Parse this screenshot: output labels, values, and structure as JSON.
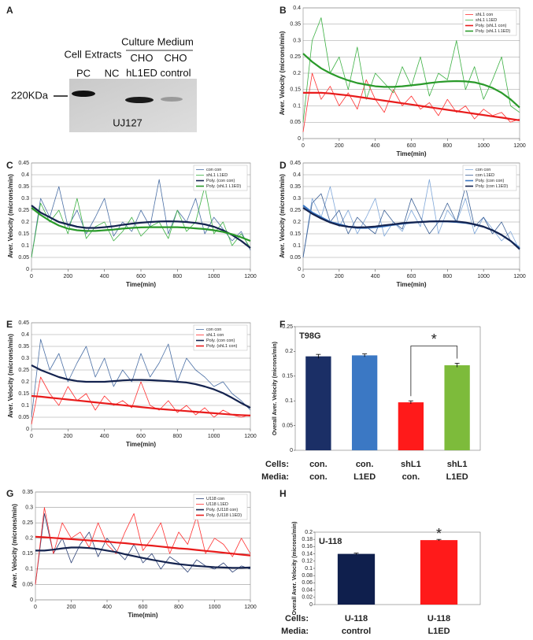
{
  "blot": {
    "panel": "A",
    "groups": [
      "Cell Extracts",
      "Culture Medium"
    ],
    "lanes": [
      "PC",
      "NC",
      "CHO\nhL1ED",
      "CHO\ncontrol"
    ],
    "marker": "220KDa",
    "antibody": "UJ127"
  },
  "chart_data": [
    {
      "panel": "B",
      "type": "line",
      "xlabel": "Time(min)",
      "ylabel": "Aver. Velocity (microns/min)",
      "grid": true,
      "legend": "upper right",
      "x": [
        0,
        50,
        100,
        150,
        200,
        250,
        300,
        350,
        400,
        450,
        500,
        550,
        600,
        650,
        700,
        750,
        800,
        850,
        900,
        950,
        1000,
        1050,
        1100,
        1150,
        1200
      ],
      "xlim": [
        0,
        1200
      ],
      "xticks": [
        0,
        200,
        400,
        600,
        800,
        1000,
        1200
      ],
      "ylim": [
        0,
        0.4
      ],
      "yticks": [
        0,
        0.05,
        0.1,
        0.15,
        0.2,
        0.25,
        0.3,
        0.35,
        0.4
      ],
      "series": [
        {
          "name": "shL1 con",
          "color": "#ff3030",
          "width": 0.8,
          "values": [
            0.02,
            0.2,
            0.12,
            0.16,
            0.1,
            0.14,
            0.09,
            0.18,
            0.12,
            0.08,
            0.15,
            0.1,
            0.13,
            0.09,
            0.11,
            0.07,
            0.12,
            0.08,
            0.1,
            0.06,
            0.09,
            0.07,
            0.08,
            0.05,
            0.06
          ]
        },
        {
          "name": "shL1 L1ED",
          "color": "#3cb043",
          "width": 0.8,
          "values": [
            0.05,
            0.3,
            0.37,
            0.2,
            0.25,
            0.15,
            0.28,
            0.12,
            0.2,
            0.17,
            0.14,
            0.22,
            0.16,
            0.25,
            0.13,
            0.2,
            0.18,
            0.3,
            0.15,
            0.22,
            0.12,
            0.18,
            0.25,
            0.1,
            0.08
          ]
        },
        {
          "name": "Poly. (shL1 con)",
          "color": "#e81c1c",
          "width": 2.2,
          "values": [
            0.14,
            0.14,
            0.14,
            0.138,
            0.135,
            0.132,
            0.128,
            0.124,
            0.12,
            0.116,
            0.112,
            0.108,
            0.104,
            0.1,
            0.096,
            0.092,
            0.088,
            0.084,
            0.08,
            0.076,
            0.072,
            0.068,
            0.064,
            0.06,
            0.056
          ]
        },
        {
          "name": "Poly. (shL1 L1ED)",
          "color": "#2a9a2a",
          "width": 2.2,
          "values": [
            0.26,
            0.235,
            0.215,
            0.2,
            0.188,
            0.178,
            0.17,
            0.165,
            0.16,
            0.158,
            0.158,
            0.16,
            0.163,
            0.166,
            0.17,
            0.173,
            0.175,
            0.176,
            0.175,
            0.172,
            0.165,
            0.155,
            0.14,
            0.12,
            0.095
          ]
        }
      ]
    },
    {
      "panel": "C",
      "type": "line",
      "xlabel": "Time(min)",
      "ylabel": "Aver. Velocity (microns/min)",
      "grid": true,
      "legend": "upper right",
      "x": [
        0,
        50,
        100,
        150,
        200,
        250,
        300,
        350,
        400,
        450,
        500,
        550,
        600,
        650,
        700,
        750,
        800,
        850,
        900,
        950,
        1000,
        1050,
        1100,
        1150,
        1200
      ],
      "xlim": [
        0,
        1200
      ],
      "xticks": [
        0,
        200,
        400,
        600,
        800,
        1000,
        1200
      ],
      "ylim": [
        0,
        0.45
      ],
      "yticks": [
        0,
        0.05,
        0.1,
        0.15,
        0.2,
        0.25,
        0.3,
        0.35,
        0.4,
        0.45
      ],
      "series": [
        {
          "name": "con con",
          "color": "#4a6fa5",
          "width": 0.8,
          "values": [
            0.05,
            0.3,
            0.22,
            0.35,
            0.18,
            0.25,
            0.15,
            0.22,
            0.3,
            0.14,
            0.2,
            0.16,
            0.25,
            0.18,
            0.38,
            0.15,
            0.25,
            0.2,
            0.3,
            0.15,
            0.22,
            0.17,
            0.12,
            0.16,
            0.08
          ]
        },
        {
          "name": "shL1 L1ED",
          "color": "#3cb043",
          "width": 0.8,
          "values": [
            0.05,
            0.28,
            0.2,
            0.25,
            0.15,
            0.3,
            0.13,
            0.18,
            0.2,
            0.12,
            0.16,
            0.22,
            0.14,
            0.18,
            0.2,
            0.13,
            0.25,
            0.16,
            0.2,
            0.35,
            0.15,
            0.2,
            0.1,
            0.15,
            0.09
          ]
        },
        {
          "name": "Poly. (con con)",
          "color": "#14234f",
          "width": 2.2,
          "values": [
            0.27,
            0.24,
            0.22,
            0.2,
            0.19,
            0.18,
            0.175,
            0.175,
            0.178,
            0.182,
            0.188,
            0.193,
            0.197,
            0.2,
            0.202,
            0.203,
            0.202,
            0.2,
            0.196,
            0.19,
            0.18,
            0.165,
            0.145,
            0.12,
            0.09
          ]
        },
        {
          "name": "Poly. (shL1 L1ED)",
          "color": "#2a9a2a",
          "width": 2.2,
          "values": [
            0.26,
            0.23,
            0.205,
            0.185,
            0.172,
            0.165,
            0.162,
            0.162,
            0.165,
            0.168,
            0.172,
            0.175,
            0.177,
            0.178,
            0.178,
            0.178,
            0.178,
            0.176,
            0.173,
            0.17,
            0.165,
            0.158,
            0.148,
            0.135,
            0.12
          ]
        }
      ]
    },
    {
      "panel": "D",
      "type": "line",
      "xlabel": "Time(min)",
      "ylabel": "Aver. Velocity (microns/min)",
      "grid": true,
      "legend": "upper right",
      "x": [
        0,
        50,
        100,
        150,
        200,
        250,
        300,
        350,
        400,
        450,
        500,
        550,
        600,
        650,
        700,
        750,
        800,
        850,
        900,
        950,
        1000,
        1050,
        1100,
        1150,
        1200
      ],
      "xlim": [
        0,
        1200
      ],
      "xticks": [
        0,
        200,
        400,
        600,
        800,
        1000,
        1200
      ],
      "ylim": [
        0,
        0.45
      ],
      "yticks": [
        0,
        0.05,
        0.1,
        0.15,
        0.2,
        0.25,
        0.3,
        0.35,
        0.4,
        0.45
      ],
      "series": [
        {
          "name": "con con",
          "color": "#7fa7d9",
          "width": 0.8,
          "values": [
            0.05,
            0.3,
            0.22,
            0.35,
            0.18,
            0.25,
            0.15,
            0.22,
            0.3,
            0.14,
            0.2,
            0.16,
            0.25,
            0.18,
            0.38,
            0.15,
            0.25,
            0.2,
            0.3,
            0.15,
            0.22,
            0.17,
            0.12,
            0.16,
            0.08
          ]
        },
        {
          "name": "con L1ED",
          "color": "#3a5f95",
          "width": 0.8,
          "values": [
            0.05,
            0.28,
            0.32,
            0.2,
            0.25,
            0.15,
            0.22,
            0.18,
            0.15,
            0.25,
            0.2,
            0.17,
            0.3,
            0.22,
            0.15,
            0.2,
            0.28,
            0.2,
            0.35,
            0.18,
            0.22,
            0.15,
            0.2,
            0.12,
            0.09
          ]
        },
        {
          "name": "Poly. (con con)",
          "color": "#3b78c4",
          "width": 2.2,
          "values": [
            0.27,
            0.24,
            0.22,
            0.2,
            0.19,
            0.18,
            0.175,
            0.175,
            0.178,
            0.182,
            0.188,
            0.193,
            0.197,
            0.2,
            0.202,
            0.203,
            0.202,
            0.2,
            0.196,
            0.19,
            0.18,
            0.165,
            0.145,
            0.12,
            0.09
          ]
        },
        {
          "name": "Poly. (con L1ED)",
          "color": "#14234f",
          "width": 2.2,
          "values": [
            0.26,
            0.235,
            0.215,
            0.198,
            0.186,
            0.18,
            0.177,
            0.178,
            0.181,
            0.186,
            0.19,
            0.195,
            0.198,
            0.2,
            0.202,
            0.203,
            0.203,
            0.202,
            0.198,
            0.19,
            0.18,
            0.165,
            0.145,
            0.12,
            0.085
          ]
        }
      ]
    },
    {
      "panel": "E",
      "type": "line",
      "xlabel": "Time(min)",
      "ylabel": "Aver. Velocity (microns/min)",
      "grid": true,
      "legend": "upper right",
      "x": [
        0,
        50,
        100,
        150,
        200,
        250,
        300,
        350,
        400,
        450,
        500,
        550,
        600,
        650,
        700,
        750,
        800,
        850,
        900,
        950,
        1000,
        1050,
        1100,
        1150,
        1200
      ],
      "xlim": [
        0,
        1200
      ],
      "xticks": [
        0,
        200,
        400,
        600,
        800,
        1000,
        1200
      ],
      "ylim": [
        0,
        0.45
      ],
      "yticks": [
        0,
        0.05,
        0.1,
        0.15,
        0.2,
        0.25,
        0.3,
        0.35,
        0.4,
        0.45
      ],
      "series": [
        {
          "name": "con con",
          "color": "#4a6fa5",
          "width": 0.8,
          "values": [
            0.05,
            0.38,
            0.25,
            0.32,
            0.2,
            0.28,
            0.35,
            0.22,
            0.3,
            0.18,
            0.25,
            0.2,
            0.32,
            0.22,
            0.28,
            0.36,
            0.2,
            0.3,
            0.25,
            0.22,
            0.18,
            0.2,
            0.15,
            0.12,
            0.08
          ]
        },
        {
          "name": "shL1 con",
          "color": "#ff3030",
          "width": 0.8,
          "values": [
            0.02,
            0.22,
            0.15,
            0.1,
            0.18,
            0.12,
            0.15,
            0.08,
            0.14,
            0.1,
            0.12,
            0.09,
            0.2,
            0.1,
            0.08,
            0.12,
            0.07,
            0.1,
            0.06,
            0.09,
            0.05,
            0.08,
            0.06,
            0.05,
            0.06
          ]
        },
        {
          "name": "Poly. (con con)",
          "color": "#14234f",
          "width": 2.2,
          "values": [
            0.27,
            0.25,
            0.235,
            0.22,
            0.21,
            0.203,
            0.2,
            0.2,
            0.2,
            0.203,
            0.206,
            0.208,
            0.208,
            0.207,
            0.205,
            0.203,
            0.2,
            0.197,
            0.19,
            0.18,
            0.168,
            0.152,
            0.132,
            0.11,
            0.09
          ]
        },
        {
          "name": "Poly. (shL1 con)",
          "color": "#e81c1c",
          "width": 2.2,
          "values": [
            0.14,
            0.137,
            0.133,
            0.129,
            0.125,
            0.121,
            0.117,
            0.113,
            0.109,
            0.105,
            0.101,
            0.097,
            0.093,
            0.089,
            0.085,
            0.082,
            0.079,
            0.076,
            0.073,
            0.07,
            0.067,
            0.064,
            0.061,
            0.059,
            0.057
          ]
        }
      ]
    },
    {
      "panel": "F",
      "type": "bar",
      "ylabel": "Overall Aver. Velocity (microns/min)",
      "inner_label": "T98G",
      "row_labels": [
        "Cells:",
        "Media:"
      ],
      "cells": [
        "con.",
        "con.",
        "shL1",
        "shL1"
      ],
      "media": [
        "con.",
        "L1ED",
        "con.",
        "L1ED"
      ],
      "values": [
        0.19,
        0.192,
        0.097,
        0.172
      ],
      "errors": [
        0.004,
        0.003,
        0.003,
        0.004
      ],
      "colors": [
        "#1b2f66",
        "#3b78c4",
        "#ff1a1a",
        "#7dbb3b"
      ],
      "ylim": [
        0,
        0.25
      ],
      "yticks": [
        0,
        0.05,
        0.1,
        0.15,
        0.2,
        0.25
      ],
      "significance": {
        "label": "*",
        "between": [
          2,
          3
        ]
      }
    },
    {
      "panel": "G",
      "type": "line",
      "xlabel": "Time(min)",
      "ylabel": "Aver. Velocity (microns/min)",
      "grid": true,
      "legend": "upper right",
      "x": [
        0,
        50,
        100,
        150,
        200,
        250,
        300,
        350,
        400,
        450,
        500,
        550,
        600,
        650,
        700,
        750,
        800,
        850,
        900,
        950,
        1000,
        1050,
        1100,
        1150,
        1200
      ],
      "xlim": [
        0,
        1200
      ],
      "xticks": [
        0,
        200,
        400,
        600,
        800,
        1000,
        1200
      ],
      "ylim": [
        0,
        0.35
      ],
      "yticks": [
        0,
        0.05,
        0.1,
        0.15,
        0.2,
        0.25,
        0.3,
        0.35
      ],
      "series": [
        {
          "name": "U118 con",
          "color": "#2a3f75",
          "width": 0.8,
          "values": [
            0.05,
            0.28,
            0.15,
            0.2,
            0.12,
            0.18,
            0.22,
            0.14,
            0.2,
            0.16,
            0.13,
            0.18,
            0.12,
            0.15,
            0.1,
            0.14,
            0.12,
            0.09,
            0.13,
            0.11,
            0.1,
            0.12,
            0.09,
            0.11,
            0.1
          ]
        },
        {
          "name": "U118 L1ED",
          "color": "#ff3030",
          "width": 0.8,
          "values": [
            0.05,
            0.3,
            0.15,
            0.25,
            0.2,
            0.22,
            0.17,
            0.25,
            0.18,
            0.15,
            0.22,
            0.28,
            0.16,
            0.2,
            0.25,
            0.15,
            0.22,
            0.18,
            0.27,
            0.15,
            0.2,
            0.18,
            0.14,
            0.2,
            0.15
          ]
        },
        {
          "name": "Poly. (U118 con)",
          "color": "#14234f",
          "width": 2.2,
          "values": [
            0.16,
            0.16,
            0.163,
            0.167,
            0.17,
            0.17,
            0.168,
            0.165,
            0.16,
            0.155,
            0.148,
            0.142,
            0.136,
            0.13,
            0.125,
            0.12,
            0.116,
            0.113,
            0.11,
            0.108,
            0.106,
            0.105,
            0.104,
            0.104,
            0.105
          ]
        },
        {
          "name": "Poly. (U118 L1ED)",
          "color": "#e81c1c",
          "width": 2.2,
          "values": [
            0.205,
            0.203,
            0.201,
            0.199,
            0.197,
            0.195,
            0.193,
            0.191,
            0.189,
            0.186,
            0.184,
            0.181,
            0.178,
            0.176,
            0.173,
            0.17,
            0.167,
            0.165,
            0.162,
            0.159,
            0.156,
            0.153,
            0.15,
            0.147,
            0.144
          ]
        }
      ]
    },
    {
      "panel": "H",
      "type": "bar",
      "ylabel": "Overall Aver. Velocity (microns/min)",
      "inner_label": "U-118",
      "row_labels": [
        "Cells:",
        "Media:"
      ],
      "cells": [
        "U-118",
        "U-118"
      ],
      "media": [
        "control",
        "L1ED"
      ],
      "values": [
        0.14,
        0.178
      ],
      "errors": [
        0.002,
        0.002
      ],
      "colors": [
        "#0f1f4d",
        "#ff1a1a"
      ],
      "ylim": [
        0,
        0.2
      ],
      "yticks": [
        0,
        0.02,
        0.04,
        0.06,
        0.08,
        0.1,
        0.12,
        0.14,
        0.16,
        0.18,
        0.2
      ],
      "significance": {
        "label": "*",
        "between": [
          1,
          1
        ]
      }
    }
  ]
}
